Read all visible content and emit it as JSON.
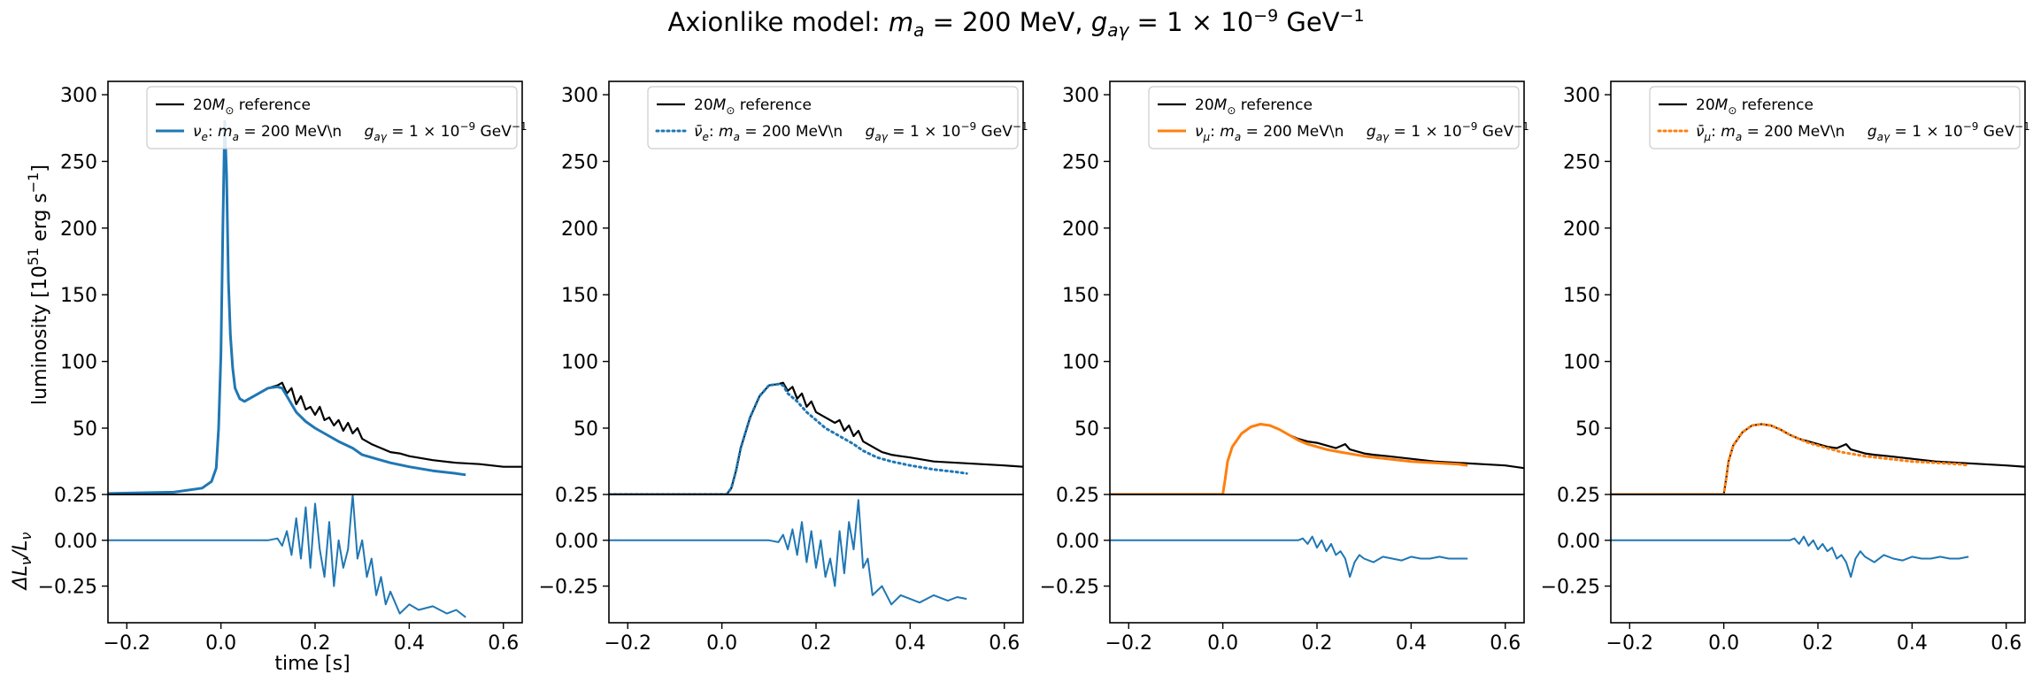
{
  "figure": {
    "title": "Axionlike model: m_a = 200 MeV, g_aγ = 1 × 10⁻⁹ GeV⁻¹",
    "title_parts": {
      "lead": "Axionlike model: ",
      "m": "m",
      "a": "a",
      "eq1": " = 200 MeV, ",
      "g": "g",
      "sub": "aγ",
      "eq2": " = 1 × 10",
      "exp1": "−9",
      "unit": " GeV",
      "exp2": "−1"
    }
  },
  "colors": {
    "reference": "#000000",
    "nu_e": "#1f77b4",
    "nu_mu": "#ff7f0e",
    "residual": "#1f77b4"
  },
  "axes_text": {
    "ylabel_top": "luminosity [10⁵¹ erg s⁻¹]",
    "ylabel_top_parts": {
      "pre": "luminosity [10",
      "exp1": "51",
      "mid": " erg s",
      "exp2": "−1",
      "post": "]"
    },
    "ylabel_bottom": "ΔL_ν/L_ν",
    "ylabel_bottom_parts": {
      "d": "ΔL",
      "s1": "ν",
      "slash": "/L",
      "s2": "ν"
    },
    "xlabel": "time [s]"
  },
  "legend": {
    "reference_parts": {
      "n": "20",
      "m": "M",
      "sun": "⊙",
      "rest": " reference"
    },
    "model_parts": {
      "colon": ": ",
      "m": "m",
      "a": "a",
      "eq1": " = 200 MeV\\n",
      "g": "g",
      "sub": "aγ",
      "eq2": " = 1 × 10",
      "exp1": "−9",
      "unit": " GeV",
      "exp2": "−1"
    },
    "species": [
      "ν_e",
      "ν̄_e",
      "ν_μ",
      "ν̄_μ"
    ],
    "species_base": [
      "ν",
      "ν̄",
      "ν",
      "ν̄"
    ],
    "species_sub": [
      "e",
      "e",
      "μ",
      "μ"
    ]
  },
  "chart_data": [
    {
      "type": "line",
      "species": "ν_e",
      "xlim": [
        -0.24,
        0.64
      ],
      "ylim_top": [
        0.25,
        310
      ],
      "ylim_bottom": [
        -0.45,
        0.25
      ],
      "x_ticks": [
        -0.2,
        0.0,
        0.2,
        0.4,
        0.6
      ],
      "x_tick_labels": [
        "−0.2",
        "0.0",
        "0.2",
        "0.4",
        "0.6"
      ],
      "y_ticks_top": [
        0.25,
        50,
        100,
        150,
        200,
        250,
        300
      ],
      "y_tick_labels_top": [
        "0.25",
        "50",
        "100",
        "150",
        "200",
        "250",
        "300"
      ],
      "y_ticks_bottom": [
        0.0,
        -0.25
      ],
      "y_tick_labels_bottom": [
        "0.00",
        "−0.25"
      ],
      "series": [
        {
          "name": "20M⊙ reference",
          "style": "solid",
          "x": [
            -0.24,
            -0.1,
            -0.04,
            -0.02,
            -0.01,
            -0.005,
            0.0,
            0.004,
            0.008,
            0.012,
            0.016,
            0.02,
            0.025,
            0.03,
            0.04,
            0.05,
            0.06,
            0.08,
            0.1,
            0.12,
            0.13,
            0.14,
            0.15,
            0.16,
            0.17,
            0.18,
            0.19,
            0.2,
            0.21,
            0.22,
            0.23,
            0.24,
            0.25,
            0.26,
            0.27,
            0.28,
            0.29,
            0.3,
            0.32,
            0.34,
            0.36,
            0.38,
            0.4,
            0.45,
            0.5,
            0.55,
            0.6,
            0.64
          ],
          "y": [
            1,
            2,
            5,
            10,
            20,
            50,
            105,
            200,
            280,
            240,
            160,
            120,
            95,
            80,
            72,
            70,
            72,
            76,
            80,
            82,
            84,
            76,
            80,
            68,
            74,
            64,
            66,
            60,
            66,
            56,
            58,
            52,
            56,
            48,
            54,
            46,
            50,
            42,
            38,
            35,
            32,
            31,
            29,
            26,
            24,
            23,
            21,
            21
          ]
        },
        {
          "name": "ν_e model",
          "style": "solid",
          "x": [
            -0.24,
            -0.1,
            -0.04,
            -0.02,
            -0.01,
            -0.005,
            0.0,
            0.004,
            0.008,
            0.012,
            0.016,
            0.02,
            0.025,
            0.03,
            0.04,
            0.05,
            0.06,
            0.08,
            0.1,
            0.12,
            0.13,
            0.14,
            0.15,
            0.16,
            0.18,
            0.2,
            0.22,
            0.25,
            0.28,
            0.3,
            0.33,
            0.36,
            0.4,
            0.45,
            0.5,
            0.52
          ],
          "y": [
            1,
            2,
            5,
            10,
            20,
            50,
            105,
            200,
            280,
            240,
            160,
            120,
            95,
            80,
            72,
            70,
            72,
            76,
            80,
            81,
            80,
            74,
            68,
            62,
            55,
            50,
            46,
            40,
            35,
            30,
            27,
            24,
            21,
            18,
            16,
            15
          ]
        }
      ],
      "residual": {
        "x": [
          -0.24,
          0.1,
          0.12,
          0.13,
          0.14,
          0.15,
          0.16,
          0.17,
          0.18,
          0.19,
          0.2,
          0.21,
          0.22,
          0.23,
          0.24,
          0.25,
          0.26,
          0.27,
          0.28,
          0.29,
          0.3,
          0.31,
          0.32,
          0.33,
          0.34,
          0.35,
          0.36,
          0.38,
          0.4,
          0.42,
          0.45,
          0.48,
          0.5,
          0.52
        ],
        "y": [
          0,
          0,
          0.01,
          -0.03,
          0.05,
          -0.08,
          0.12,
          -0.1,
          0.18,
          -0.15,
          0.2,
          -0.05,
          -0.2,
          0.1,
          -0.25,
          0.0,
          -0.15,
          -0.05,
          0.25,
          -0.1,
          0.0,
          -0.2,
          -0.1,
          -0.3,
          -0.2,
          -0.35,
          -0.28,
          -0.4,
          -0.35,
          -0.38,
          -0.36,
          -0.4,
          -0.38,
          -0.42
        ]
      }
    },
    {
      "type": "line",
      "species": "ν̄_e",
      "xlim": [
        -0.24,
        0.64
      ],
      "ylim_top": [
        0.25,
        310
      ],
      "ylim_bottom": [
        -0.45,
        0.25
      ],
      "x_ticks": [
        -0.2,
        0.0,
        0.2,
        0.4,
        0.6
      ],
      "x_tick_labels": [
        "−0.2",
        "0.0",
        "0.2",
        "0.4",
        "0.6"
      ],
      "y_ticks_top": [
        0.25,
        50,
        100,
        150,
        200,
        250,
        300
      ],
      "y_tick_labels_top": [
        "0.25",
        "50",
        "100",
        "150",
        "200",
        "250",
        "300"
      ],
      "y_ticks_bottom": [
        0.0,
        -0.25
      ],
      "y_tick_labels_bottom": [
        "0.00",
        "−0.25"
      ],
      "series": [
        {
          "name": "20M⊙ reference",
          "style": "solid",
          "x": [
            -0.24,
            0.0,
            0.01,
            0.02,
            0.03,
            0.04,
            0.06,
            0.08,
            0.1,
            0.12,
            0.13,
            0.14,
            0.15,
            0.16,
            0.17,
            0.18,
            0.19,
            0.2,
            0.22,
            0.24,
            0.25,
            0.26,
            0.27,
            0.28,
            0.29,
            0.3,
            0.32,
            0.34,
            0.36,
            0.38,
            0.4,
            0.45,
            0.5,
            0.55,
            0.6,
            0.64
          ],
          "y": [
            0.3,
            0.3,
            0.3,
            5,
            18,
            35,
            58,
            74,
            82,
            83,
            84,
            78,
            81,
            72,
            76,
            66,
            70,
            62,
            58,
            54,
            56,
            48,
            52,
            44,
            48,
            40,
            36,
            32,
            30,
            29,
            28,
            25,
            24,
            23,
            22,
            21
          ]
        },
        {
          "name": "ν̄_e model",
          "style": "dotted",
          "x": [
            -0.24,
            0.0,
            0.01,
            0.02,
            0.03,
            0.04,
            0.06,
            0.08,
            0.1,
            0.12,
            0.13,
            0.14,
            0.16,
            0.18,
            0.2,
            0.22,
            0.25,
            0.28,
            0.3,
            0.33,
            0.36,
            0.4,
            0.45,
            0.5,
            0.52
          ],
          "y": [
            0.3,
            0.3,
            0.3,
            5,
            18,
            35,
            58,
            74,
            82,
            83,
            82,
            76,
            70,
            62,
            56,
            50,
            44,
            38,
            33,
            28,
            25,
            22,
            19,
            17,
            16
          ]
        }
      ],
      "residual": {
        "x": [
          -0.24,
          0.1,
          0.12,
          0.13,
          0.14,
          0.15,
          0.16,
          0.17,
          0.18,
          0.19,
          0.2,
          0.21,
          0.22,
          0.23,
          0.24,
          0.25,
          0.26,
          0.27,
          0.28,
          0.29,
          0.3,
          0.31,
          0.32,
          0.34,
          0.36,
          0.38,
          0.4,
          0.42,
          0.45,
          0.48,
          0.5,
          0.52
        ],
        "y": [
          0,
          0,
          -0.01,
          0.03,
          -0.05,
          0.06,
          -0.08,
          0.1,
          -0.12,
          0.05,
          -0.15,
          0.0,
          -0.2,
          -0.1,
          -0.25,
          0.05,
          -0.18,
          0.1,
          -0.05,
          0.22,
          -0.15,
          -0.1,
          -0.3,
          -0.25,
          -0.35,
          -0.3,
          -0.32,
          -0.34,
          -0.3,
          -0.33,
          -0.31,
          -0.32
        ]
      }
    },
    {
      "type": "line",
      "species": "ν_μ",
      "xlim": [
        -0.24,
        0.64
      ],
      "ylim_top": [
        0.25,
        310
      ],
      "ylim_bottom": [
        -0.45,
        0.25
      ],
      "x_ticks": [
        -0.2,
        0.0,
        0.2,
        0.4,
        0.6
      ],
      "x_tick_labels": [
        "−0.2",
        "0.0",
        "0.2",
        "0.4",
        "0.6"
      ],
      "y_ticks_top": [
        0.25,
        50,
        100,
        150,
        200,
        250,
        300
      ],
      "y_tick_labels_top": [
        "0.25",
        "50",
        "100",
        "150",
        "200",
        "250",
        "300"
      ],
      "y_ticks_bottom": [
        0.0,
        -0.25
      ],
      "y_tick_labels_bottom": [
        "0.00",
        "−0.25"
      ],
      "series": [
        {
          "name": "20M⊙ reference",
          "style": "solid",
          "x": [
            -0.24,
            0.0,
            0.005,
            0.01,
            0.02,
            0.04,
            0.06,
            0.08,
            0.1,
            0.12,
            0.14,
            0.16,
            0.18,
            0.2,
            0.22,
            0.24,
            0.26,
            0.27,
            0.28,
            0.3,
            0.32,
            0.35,
            0.4,
            0.45,
            0.5,
            0.55,
            0.6,
            0.64
          ],
          "y": [
            0.3,
            0.3,
            12,
            25,
            36,
            46,
            51,
            53,
            52,
            49,
            45,
            42,
            40,
            39,
            37,
            35,
            38,
            34,
            33,
            31,
            30,
            29,
            27,
            25,
            24,
            23,
            22,
            20
          ]
        },
        {
          "name": "ν_μ model",
          "style": "solid",
          "x": [
            -0.24,
            0.0,
            0.005,
            0.01,
            0.02,
            0.04,
            0.06,
            0.08,
            0.1,
            0.12,
            0.14,
            0.16,
            0.18,
            0.2,
            0.22,
            0.25,
            0.3,
            0.35,
            0.4,
            0.45,
            0.5,
            0.52
          ],
          "y": [
            0.3,
            0.3,
            12,
            25,
            36,
            46,
            51,
            53,
            52,
            49,
            45,
            41,
            38,
            36,
            34,
            32,
            29,
            27,
            25,
            24,
            23,
            22
          ]
        }
      ],
      "residual": {
        "x": [
          -0.24,
          0.16,
          0.17,
          0.18,
          0.19,
          0.2,
          0.21,
          0.22,
          0.23,
          0.24,
          0.25,
          0.26,
          0.27,
          0.28,
          0.29,
          0.3,
          0.32,
          0.34,
          0.36,
          0.38,
          0.4,
          0.42,
          0.44,
          0.46,
          0.48,
          0.5,
          0.52
        ],
        "y": [
          0,
          0,
          0.01,
          -0.02,
          0.02,
          -0.04,
          0.0,
          -0.06,
          -0.02,
          -0.08,
          -0.06,
          -0.1,
          -0.2,
          -0.12,
          -0.08,
          -0.1,
          -0.12,
          -0.09,
          -0.1,
          -0.11,
          -0.09,
          -0.1,
          -0.1,
          -0.09,
          -0.1,
          -0.1,
          -0.1
        ]
      }
    },
    {
      "type": "line",
      "species": "ν̄_μ",
      "xlim": [
        -0.24,
        0.64
      ],
      "ylim_top": [
        0.25,
        310
      ],
      "ylim_bottom": [
        -0.45,
        0.25
      ],
      "x_ticks": [
        -0.2,
        0.0,
        0.2,
        0.4,
        0.6
      ],
      "x_tick_labels": [
        "−0.2",
        "0.0",
        "0.2",
        "0.4",
        "0.6"
      ],
      "y_ticks_top": [
        0.25,
        50,
        100,
        150,
        200,
        250,
        300
      ],
      "y_tick_labels_top": [
        "0.25",
        "50",
        "100",
        "150",
        "200",
        "250",
        "300"
      ],
      "y_ticks_bottom": [
        0.0,
        -0.25
      ],
      "y_tick_labels_bottom": [
        "0.00",
        "−0.25"
      ],
      "series": [
        {
          "name": "20M⊙ reference",
          "style": "solid",
          "x": [
            -0.24,
            0.0,
            0.005,
            0.01,
            0.02,
            0.04,
            0.06,
            0.08,
            0.1,
            0.12,
            0.14,
            0.16,
            0.18,
            0.2,
            0.22,
            0.24,
            0.26,
            0.27,
            0.28,
            0.3,
            0.32,
            0.35,
            0.4,
            0.45,
            0.5,
            0.55,
            0.6,
            0.64
          ],
          "y": [
            0.3,
            0.3,
            12,
            25,
            37,
            47,
            52,
            53,
            52,
            49,
            45,
            42,
            40,
            38,
            36,
            35,
            38,
            34,
            33,
            31,
            30,
            29,
            27,
            25,
            24,
            23,
            22,
            21
          ]
        },
        {
          "name": "ν̄_μ model",
          "style": "dotted",
          "x": [
            -0.24,
            0.0,
            0.005,
            0.01,
            0.02,
            0.04,
            0.06,
            0.08,
            0.1,
            0.12,
            0.14,
            0.16,
            0.18,
            0.2,
            0.22,
            0.25,
            0.3,
            0.35,
            0.4,
            0.45,
            0.5,
            0.52
          ],
          "y": [
            0.3,
            0.3,
            12,
            25,
            37,
            47,
            52,
            53,
            52,
            49,
            45,
            42,
            39,
            37,
            35,
            32,
            29,
            27,
            25,
            24,
            23,
            22
          ]
        }
      ],
      "residual": {
        "x": [
          -0.24,
          0.14,
          0.15,
          0.16,
          0.17,
          0.18,
          0.19,
          0.2,
          0.21,
          0.22,
          0.23,
          0.24,
          0.25,
          0.26,
          0.27,
          0.28,
          0.29,
          0.3,
          0.32,
          0.34,
          0.36,
          0.38,
          0.4,
          0.42,
          0.44,
          0.46,
          0.48,
          0.5,
          0.52
        ],
        "y": [
          0,
          0,
          0.01,
          -0.02,
          0.02,
          -0.03,
          0.0,
          -0.05,
          -0.02,
          -0.06,
          -0.04,
          -0.1,
          -0.08,
          -0.12,
          -0.2,
          -0.1,
          -0.06,
          -0.09,
          -0.12,
          -0.08,
          -0.1,
          -0.11,
          -0.09,
          -0.1,
          -0.1,
          -0.09,
          -0.1,
          -0.1,
          -0.09
        ]
      }
    }
  ]
}
